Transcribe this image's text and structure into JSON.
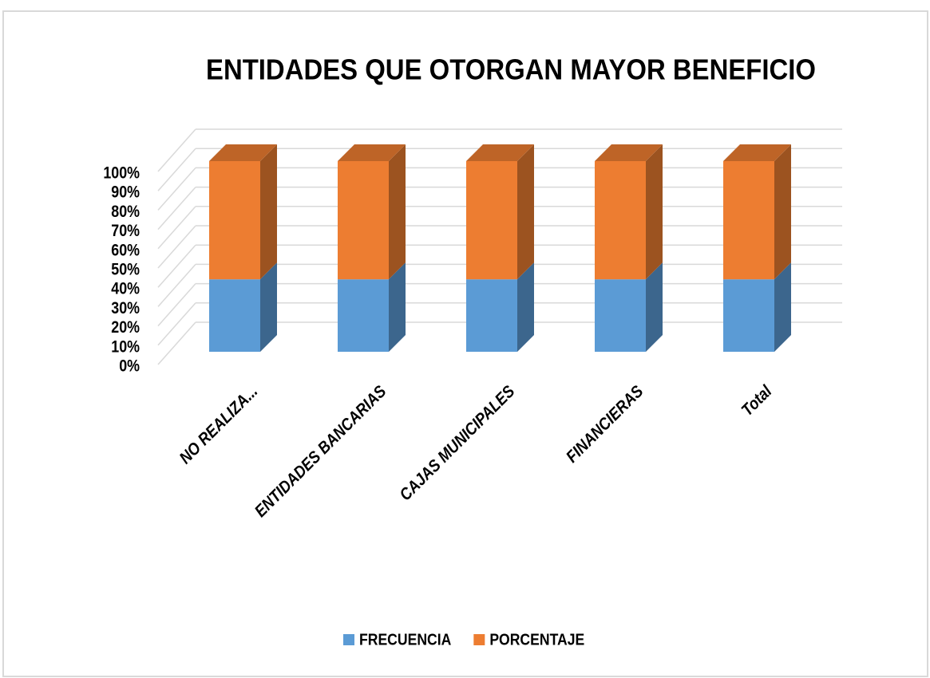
{
  "chart_data": {
    "type": "bar3d_stacked",
    "title": "ENTIDADES QUE OTORGAN MAYOR BENEFICIO",
    "categories": [
      "NO REALIZA...",
      "ENTIDADES BANCARIAS",
      "CAJAS MUNICIPALES",
      "FINANCIERAS",
      "Total"
    ],
    "series": [
      {
        "name": "FRECUENCIA",
        "color": "#5b9bd5",
        "values": [
          38,
          38,
          38,
          38,
          38
        ]
      },
      {
        "name": "PORCENTAJE",
        "color": "#ed7d31",
        "values": [
          62,
          62,
          62,
          62,
          62
        ]
      }
    ],
    "ylim": [
      0,
      100
    ],
    "yticks": [
      {
        "value": 0,
        "label": "0%"
      },
      {
        "value": 10,
        "label": "10%"
      },
      {
        "value": 20,
        "label": "20%"
      },
      {
        "value": 30,
        "label": "30%"
      },
      {
        "value": 40,
        "label": "40%"
      },
      {
        "value": 50,
        "label": "50%"
      },
      {
        "value": 60,
        "label": "60%"
      },
      {
        "value": 70,
        "label": "70%"
      },
      {
        "value": 80,
        "label": "80%"
      },
      {
        "value": 90,
        "label": "90%"
      },
      {
        "value": 100,
        "label": "100%"
      }
    ],
    "grid": true,
    "legend": "bottom"
  }
}
